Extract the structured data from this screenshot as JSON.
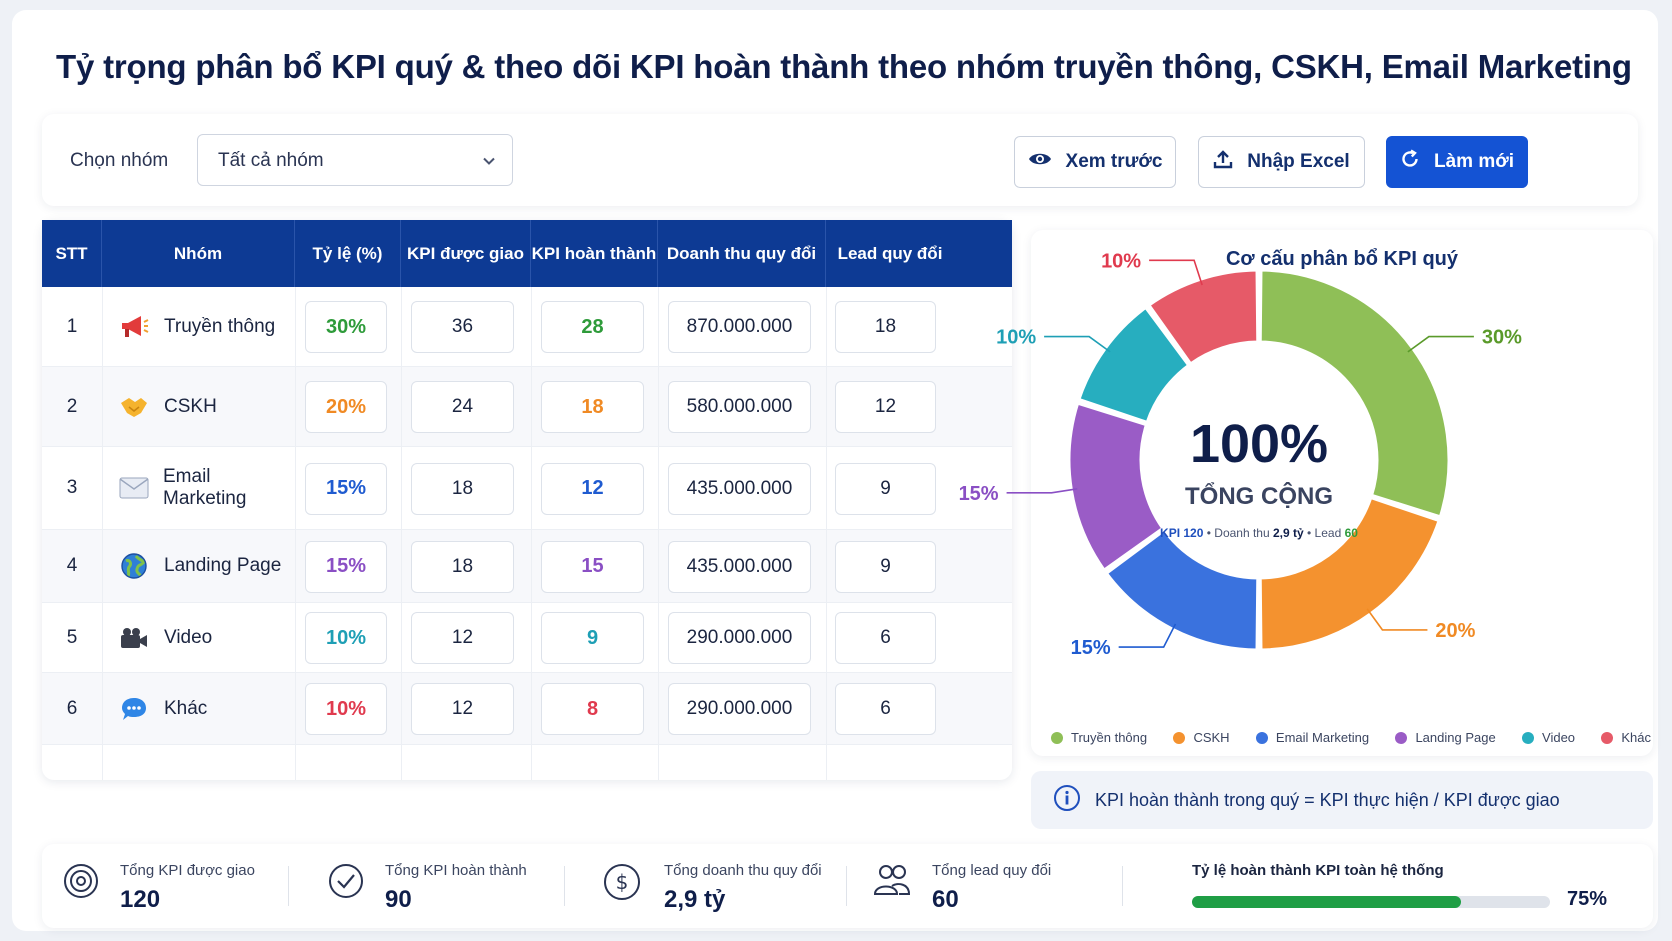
{
  "title": "Tỷ trọng phân bổ KPI quý & theo dõi KPI hoàn thành theo nhóm truyền thông, CSKH, Email Marketing",
  "toolbar": {
    "group_label": "Chọn nhóm",
    "group_value": "Tất cả nhóm",
    "preview_label": "Xem trước",
    "import_label": "Nhập Excel",
    "refresh_label": "Làm mới"
  },
  "table": {
    "headers": [
      "STT",
      "Nhóm",
      "Tỷ lệ (%)",
      "KPI được giao",
      "KPI hoàn thành",
      "Doanh thu quy đổi",
      "Lead quy đổi"
    ],
    "rows": [
      {
        "stt": "1",
        "name": "Truyền thông",
        "icon": "megaphone-icon",
        "rate": "30%",
        "assigned": "36",
        "done": "28",
        "revenue": "870.000.000",
        "lead": "18",
        "rate_color": "#2e9b3a",
        "done_color": "#2e9b3a"
      },
      {
        "stt": "2",
        "name": "CSKH",
        "icon": "handshake-icon",
        "rate": "20%",
        "assigned": "24",
        "done": "18",
        "revenue": "580.000.000",
        "lead": "12",
        "rate_color": "#f08a24",
        "done_color": "#f08a24"
      },
      {
        "stt": "3",
        "name": "Email Marketing",
        "icon": "envelope-icon",
        "rate": "15%",
        "assigned": "18",
        "done": "12",
        "revenue": "435.000.000",
        "lead": "9",
        "rate_color": "#1f5bd0",
        "done_color": "#1f5bd0"
      },
      {
        "stt": "4",
        "name": "Landing Page",
        "icon": "globe-icon",
        "rate": "15%",
        "assigned": "18",
        "done": "15",
        "revenue": "435.000.000",
        "lead": "9",
        "rate_color": "#8a4fc4",
        "done_color": "#8a4fc4"
      },
      {
        "stt": "5",
        "name": "Video",
        "icon": "video-camera-icon",
        "rate": "10%",
        "assigned": "12",
        "done": "9",
        "revenue": "290.000.000",
        "lead": "6",
        "rate_color": "#1e9fb5",
        "done_color": "#1e9fb5"
      },
      {
        "stt": "6",
        "name": "Khác",
        "icon": "chat-bubble-icon",
        "rate": "10%",
        "assigned": "12",
        "done": "8",
        "revenue": "290.000.000",
        "lead": "6",
        "rate_color": "#e03a4e",
        "done_color": "#e03a4e"
      }
    ]
  },
  "chart_data": {
    "type": "pie",
    "title": "Cơ cấu phân bổ KPI quý",
    "center_value": "100%",
    "center_label": "TỔNG CỘNG",
    "center_sub": {
      "kpi_label": "KPI",
      "kpi": "120",
      "revenue_label": "Doanh thu",
      "revenue": "2,9 tỷ",
      "lead_label": "Lead",
      "lead": "60"
    },
    "categories": [
      "Truyền thông",
      "CSKH",
      "Email Marketing",
      "Landing Page",
      "Video",
      "Khác"
    ],
    "values": [
      30,
      20,
      15,
      15,
      10,
      10
    ],
    "labels": [
      "30%",
      "20%",
      "15%",
      "15%",
      "10%",
      "10%"
    ],
    "colors": [
      "#8fbf57",
      "#f4922f",
      "#3a72de",
      "#9a5cc6",
      "#27aebf",
      "#e65a68"
    ],
    "label_colors": [
      "#5a9a2a",
      "#f08a24",
      "#1f5bd0",
      "#8a4fc4",
      "#1e9fb5",
      "#e03a4e"
    ]
  },
  "note": "KPI hoàn thành trong quý = KPI thực hiện / KPI được giao",
  "stats": {
    "assigned_label": "Tổng KPI được giao",
    "assigned_value": "120",
    "done_label": "Tổng KPI hoàn thành",
    "done_value": "90",
    "revenue_label": "Tổng doanh thu quy đổi",
    "revenue_value": "2,9 tỷ",
    "lead_label": "Tổng lead quy đổi",
    "lead_value": "60",
    "rate_label": "Tỷ lệ hoàn thành KPI toàn hệ thống",
    "rate_value": "75%",
    "rate_fraction": 0.75
  }
}
